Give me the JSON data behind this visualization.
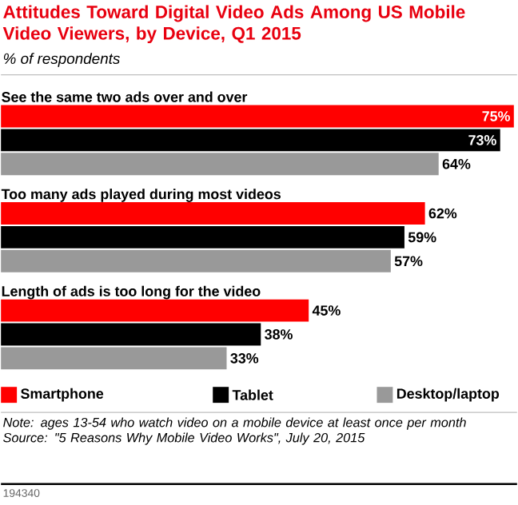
{
  "chart_data": {
    "type": "bar",
    "orientation": "horizontal",
    "title": "Attitudes Toward Digital Video Ads Among US Mobile Video Viewers, by Device, Q1 2015",
    "subtitle": "% of respondents",
    "categories": [
      "See the same two ads over and over",
      "Too many ads played during most videos",
      "Length of ads is too long for the video"
    ],
    "series": [
      {
        "name": "Smartphone",
        "color": "#ff0000",
        "values": [
          75,
          62,
          45
        ],
        "value_labels": [
          "75%",
          "62%",
          "45%"
        ]
      },
      {
        "name": "Tablet",
        "color": "#000000",
        "values": [
          73,
          59,
          38
        ],
        "value_labels": [
          "73%",
          "59%",
          "38%"
        ]
      },
      {
        "name": "Desktop/laptop",
        "color": "#999999",
        "values": [
          64,
          57,
          33
        ],
        "value_labels": [
          "64%",
          "57%",
          "33%"
        ]
      }
    ],
    "legend": "bottom",
    "annotations": [
      "Note: ages 13-54 who watch video on a mobile device at least once per month",
      "Source: \"5 Reasons Why Mobile Video Works\", July 20, 2015",
      "194340"
    ]
  }
}
